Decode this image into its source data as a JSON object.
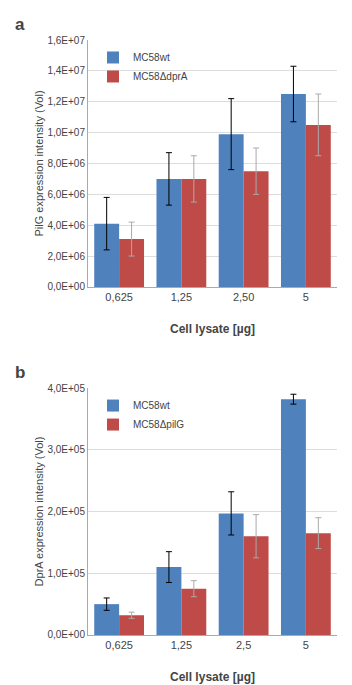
{
  "chart_data": [
    {
      "type": "bar",
      "title": "a",
      "categories": [
        "0,625",
        "1,25",
        "2,50",
        "5"
      ],
      "series": [
        {
          "name": "MC58wt",
          "color": "#4F81BD",
          "values": [
            4100000,
            7000000,
            9900000,
            12500000
          ],
          "errors": [
            1700000,
            1700000,
            2300000,
            1800000
          ]
        },
        {
          "name": "MC58ΔdprA",
          "color": "#BE4B48",
          "values": [
            3100000,
            7000000,
            7500000,
            10500000
          ],
          "errors": [
            1100000,
            1500000,
            1500000,
            2000000
          ]
        }
      ],
      "ylabel": "PilG expression intensity (Vol)",
      "xlabel": "Cell lysate [µg]",
      "ylim": [
        0,
        16000000
      ],
      "yticks": [
        {
          "value": 0,
          "label": "0,0E+00"
        },
        {
          "value": 2000000,
          "label": "2,0E+06"
        },
        {
          "value": 4000000,
          "label": "4,0E+06"
        },
        {
          "value": 6000000,
          "label": "6,0E+06"
        },
        {
          "value": 8000000,
          "label": "8,0E+06"
        },
        {
          "value": 10000000,
          "label": "1,0E+07"
        },
        {
          "value": 12000000,
          "label": "1,2E+07"
        },
        {
          "value": 14000000,
          "label": "1,4E+07"
        },
        {
          "value": 16000000,
          "label": "1,6E+07"
        }
      ],
      "grid": true,
      "legend": "upper left"
    },
    {
      "type": "bar",
      "title": "b",
      "categories": [
        "0,625",
        "1,25",
        "2,5",
        "5"
      ],
      "series": [
        {
          "name": "MC58wt",
          "color": "#4F81BD",
          "values": [
            50000,
            110000,
            197000,
            382000
          ],
          "errors": [
            10000,
            25000,
            35000,
            8000
          ]
        },
        {
          "name": "MC58ΔpilG",
          "color": "#BE4B48",
          "values": [
            32000,
            75000,
            160000,
            165000
          ],
          "errors": [
            5000,
            13000,
            35000,
            25000
          ]
        }
      ],
      "ylabel": "DprA expression intensity (Vol)",
      "xlabel": "Cell lysate [µg]",
      "ylim": [
        0,
        400000
      ],
      "yticks": [
        {
          "value": 0,
          "label": "0,0E+00"
        },
        {
          "value": 100000,
          "label": "1,0E+05"
        },
        {
          "value": 200000,
          "label": "2,0E+05"
        },
        {
          "value": 300000,
          "label": "3,0E+05"
        },
        {
          "value": 400000,
          "label": "4,0E+05"
        }
      ],
      "grid": true,
      "legend": "upper left"
    }
  ]
}
